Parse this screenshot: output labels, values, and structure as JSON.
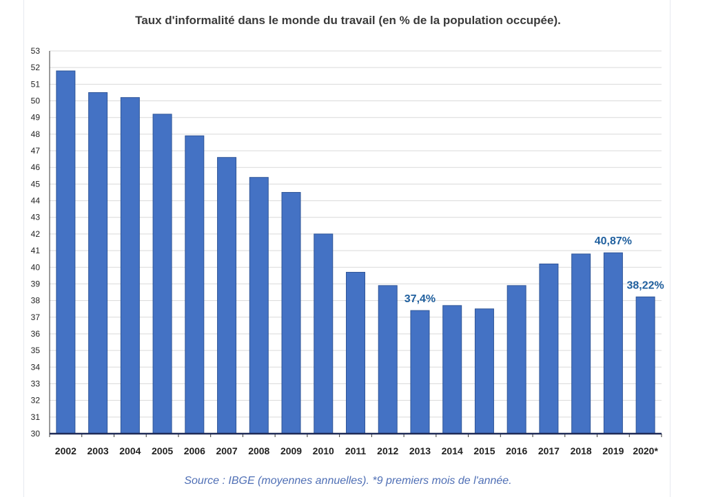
{
  "chart_data": {
    "type": "bar",
    "title": "Taux d'informalité dans le monde du travail (en % de la population occupée).",
    "source": "Source : IBGE (moyennes annuelles). *9 premiers mois de l'année.",
    "categories": [
      "2002",
      "2003",
      "2004",
      "2005",
      "2006",
      "2007",
      "2008",
      "2009",
      "2010",
      "2011",
      "2012",
      "2013",
      "2014",
      "2015",
      "2016",
      "2017",
      "2018",
      "2019",
      "2020*"
    ],
    "values": [
      51.8,
      50.5,
      50.2,
      49.2,
      47.9,
      46.6,
      45.4,
      44.5,
      42.0,
      39.7,
      38.9,
      37.4,
      37.7,
      37.5,
      38.9,
      40.2,
      40.8,
      40.87,
      38.22
    ],
    "ylim": [
      30,
      53
    ],
    "yticks": [
      30,
      31,
      32,
      33,
      34,
      35,
      36,
      37,
      38,
      39,
      40,
      41,
      42,
      43,
      44,
      45,
      46,
      47,
      48,
      49,
      50,
      51,
      52,
      53
    ],
    "grid": true,
    "bar_color": "#4472c4",
    "annotations": [
      {
        "category": "2013",
        "text": "37,4%"
      },
      {
        "category": "2019",
        "text": "40,87%"
      },
      {
        "category": "2020*",
        "text": "38,22%"
      }
    ]
  }
}
